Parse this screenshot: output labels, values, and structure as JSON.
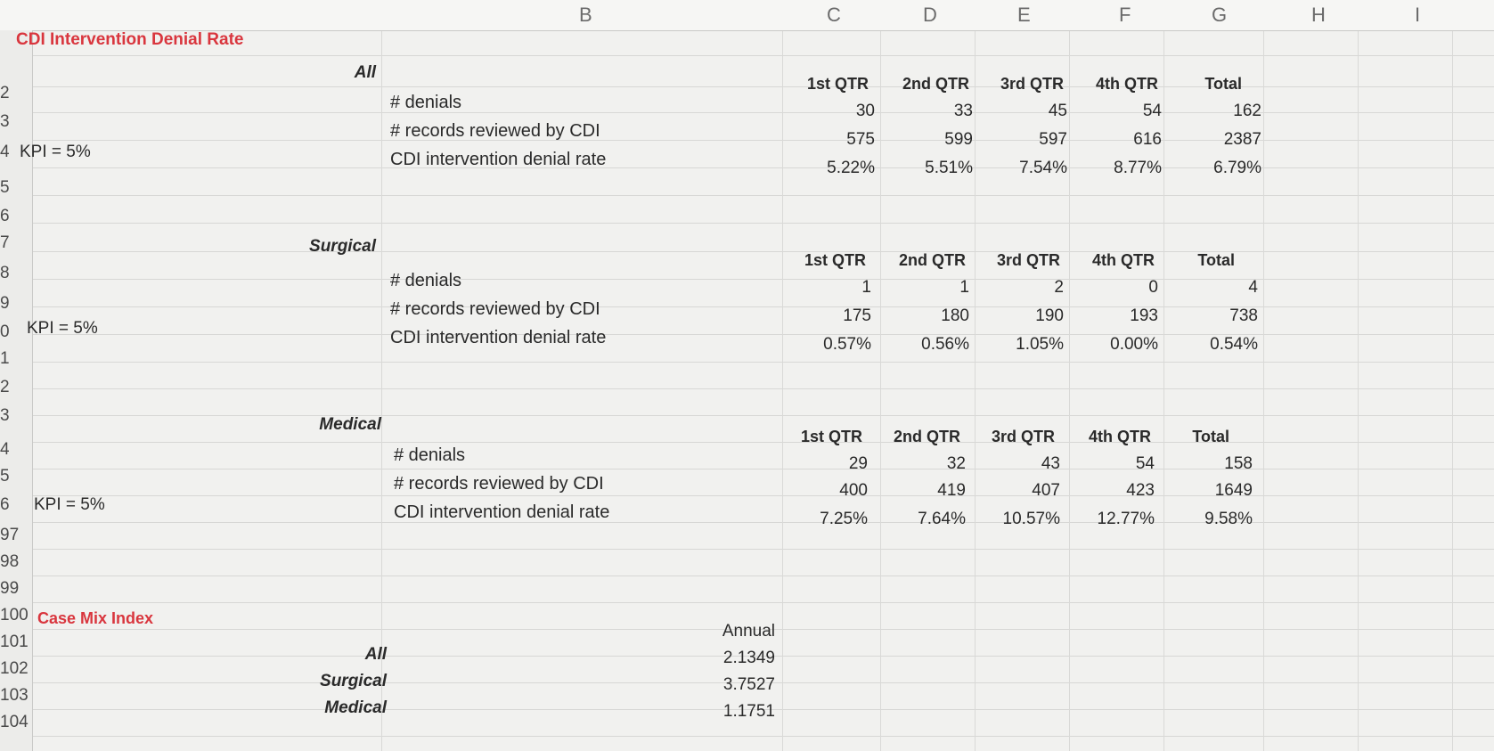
{
  "column_letters": [
    "B",
    "C",
    "D",
    "E",
    "F",
    "G",
    "H",
    "I"
  ],
  "row_numbers": [
    "2",
    "3",
    "4",
    "5",
    "6",
    "7",
    "8",
    "9",
    "0",
    "1",
    "2",
    "3",
    "4",
    "5",
    "6",
    "97",
    "98",
    "99",
    "100",
    "101",
    "102",
    "103",
    "104"
  ],
  "title_denial": "CDI Intervention Denial Rate",
  "title_cmi": "Case Mix Index",
  "kpi_label": "KPI = 5%",
  "row_labels": {
    "denials": "# denials",
    "records": "# records reviewed by CDI",
    "rate": "CDI intervention denial rate"
  },
  "quarter_headers": [
    "1st QTR",
    "2nd QTR",
    "3rd QTR",
    "4th QTR",
    "Total"
  ],
  "sections": [
    {
      "name": "All",
      "denials": [
        "30",
        "33",
        "45",
        "54",
        "162"
      ],
      "records": [
        "575",
        "599",
        "597",
        "616",
        "2387"
      ],
      "rate": [
        "5.22%",
        "5.51%",
        "7.54%",
        "8.77%",
        "6.79%"
      ]
    },
    {
      "name": "Surgical",
      "denials": [
        "1",
        "1",
        "2",
        "0",
        "4"
      ],
      "records": [
        "175",
        "180",
        "190",
        "193",
        "738"
      ],
      "rate": [
        "0.57%",
        "0.56%",
        "1.05%",
        "0.00%",
        "0.54%"
      ]
    },
    {
      "name": "Medical",
      "denials": [
        "29",
        "32",
        "43",
        "54",
        "158"
      ],
      "records": [
        "400",
        "419",
        "407",
        "423",
        "1649"
      ],
      "rate": [
        "7.25%",
        "7.64%",
        "10.57%",
        "12.77%",
        "9.58%"
      ]
    }
  ],
  "cmi": {
    "header": "Annual",
    "rows": [
      {
        "label": "All",
        "value": "2.1349"
      },
      {
        "label": "Surgical",
        "value": "3.7527"
      },
      {
        "label": "Medical",
        "value": "1.1751"
      }
    ]
  },
  "colors": {
    "title_red": "#d9363e",
    "grid": "#d7d7d5",
    "background": "#f1f1ef"
  }
}
